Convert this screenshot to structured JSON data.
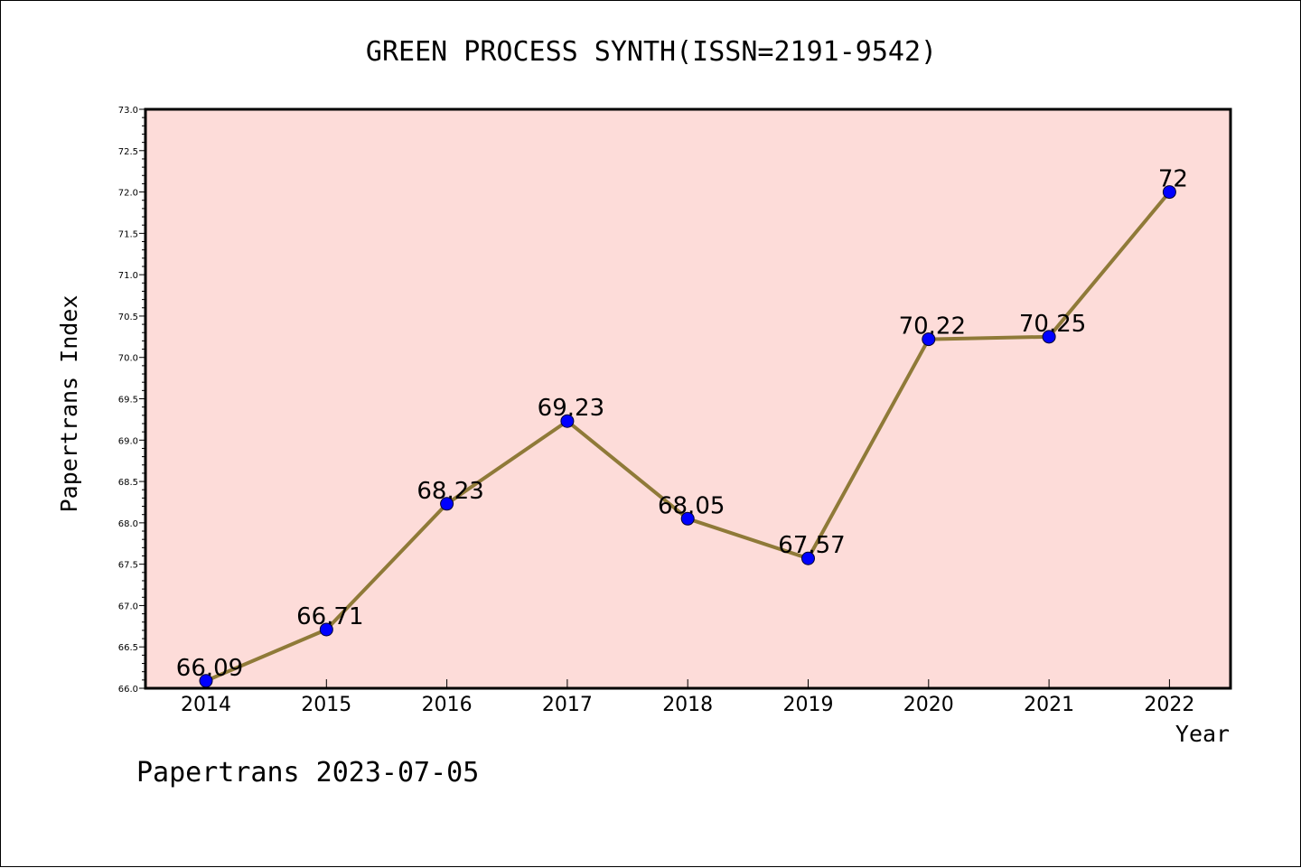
{
  "chart_data": {
    "type": "line",
    "title": "GREEN PROCESS SYNTH(ISSN=2191-9542)",
    "xlabel": "Year",
    "ylabel": "Papertrans Index",
    "categories": [
      "2014",
      "2015",
      "2016",
      "2017",
      "2018",
      "2019",
      "2020",
      "2021",
      "2022"
    ],
    "series": [
      {
        "values": [
          66.09,
          66.71,
          68.23,
          69.23,
          68.05,
          67.57,
          70.22,
          70.25,
          72
        ],
        "data_labels": [
          "66.09",
          "66.71",
          "68.23",
          "69.23",
          "68.05",
          "67.57",
          "70.22",
          "70.25",
          "72"
        ]
      }
    ],
    "ylim": [
      66.0,
      73.0
    ],
    "yticks": [
      "66.0",
      "66.5",
      "67.0",
      "67.5",
      "68.0",
      "68.5",
      "69.0",
      "69.5",
      "70.0",
      "70.5",
      "71.0",
      "71.5",
      "72.0",
      "72.5",
      "73.0"
    ],
    "grid": false,
    "colors": {
      "plot_background": "#fddcd9",
      "line": "#8f7a38",
      "marker": "#0000ff"
    }
  },
  "footer": "Papertrans 2023-07-05"
}
